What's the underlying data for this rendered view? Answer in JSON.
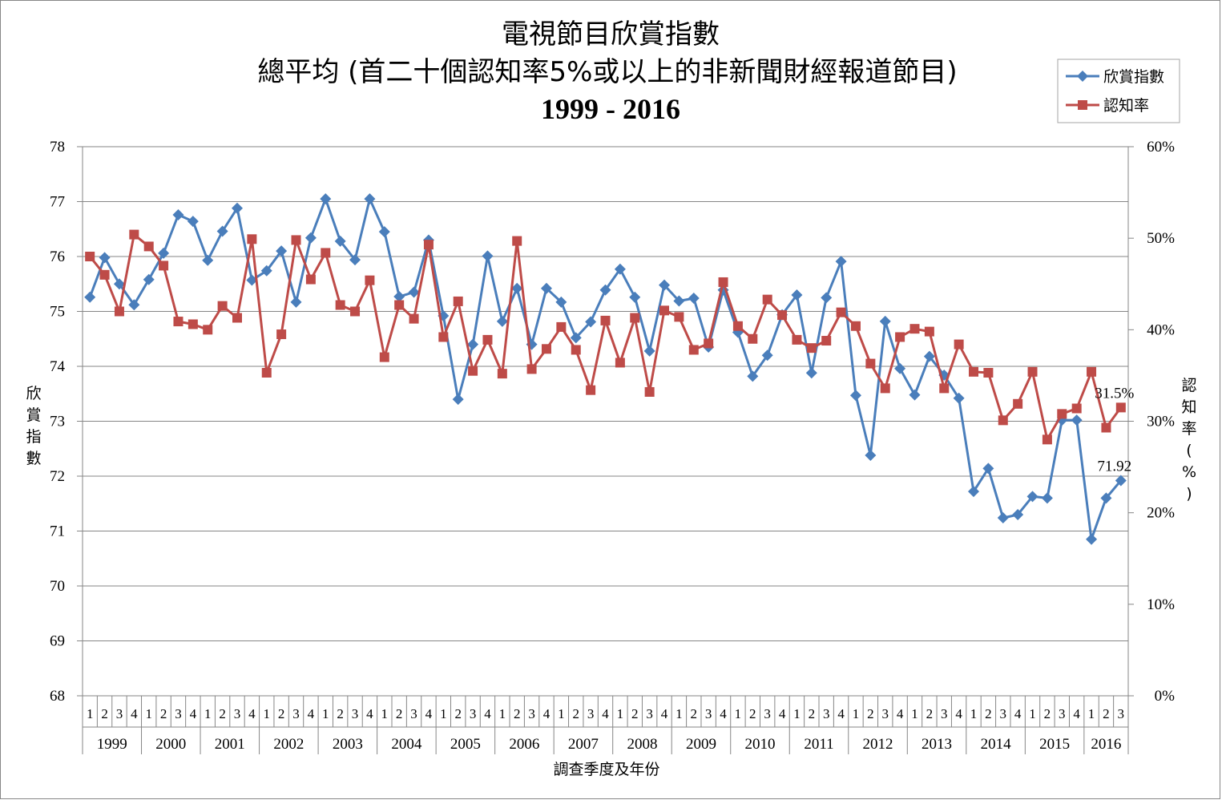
{
  "chart_data": {
    "type": "line",
    "title": [
      "電視節目欣賞指數",
      "總平均 (首二十個認知率5%或以上的非新聞財經報道節目)",
      "1999 - 2016"
    ],
    "xlabel": "調查季度及年份",
    "ylabel": "欣賞指數",
    "y2label": "認知率(%)",
    "ylim": [
      68,
      78
    ],
    "y_ticks": [
      "68",
      "69",
      "70",
      "71",
      "72",
      "73",
      "74",
      "75",
      "76",
      "77",
      "78"
    ],
    "y2lim": [
      0,
      60
    ],
    "y2_ticks": [
      "0%",
      "10%",
      "20%",
      "30%",
      "40%",
      "50%",
      "60%"
    ],
    "legend_position": "top-right",
    "years": [
      {
        "label": "1999",
        "quarters": [
          "1",
          "2",
          "3",
          "4"
        ]
      },
      {
        "label": "2000",
        "quarters": [
          "1",
          "2",
          "3",
          "4"
        ]
      },
      {
        "label": "2001",
        "quarters": [
          "1",
          "2",
          "3",
          "4"
        ]
      },
      {
        "label": "2002",
        "quarters": [
          "1",
          "2",
          "3",
          "4"
        ]
      },
      {
        "label": "2003",
        "quarters": [
          "1",
          "2",
          "3",
          "4"
        ]
      },
      {
        "label": "2004",
        "quarters": [
          "1",
          "2",
          "3",
          "4"
        ]
      },
      {
        "label": "2005",
        "quarters": [
          "1",
          "2",
          "3",
          "4"
        ]
      },
      {
        "label": "2006",
        "quarters": [
          "1",
          "2",
          "3",
          "4"
        ]
      },
      {
        "label": "2007",
        "quarters": [
          "1",
          "2",
          "3",
          "4"
        ]
      },
      {
        "label": "2008",
        "quarters": [
          "1",
          "2",
          "3",
          "4"
        ]
      },
      {
        "label": "2009",
        "quarters": [
          "1",
          "2",
          "3",
          "4"
        ]
      },
      {
        "label": "2010",
        "quarters": [
          "1",
          "2",
          "3",
          "4"
        ]
      },
      {
        "label": "2011",
        "quarters": [
          "1",
          "2",
          "3",
          "4"
        ]
      },
      {
        "label": "2012",
        "quarters": [
          "1",
          "2",
          "3",
          "4"
        ]
      },
      {
        "label": "2013",
        "quarters": [
          "1",
          "2",
          "3",
          "4"
        ]
      },
      {
        "label": "2014",
        "quarters": [
          "1",
          "2",
          "3",
          "4"
        ]
      },
      {
        "label": "2015",
        "quarters": [
          "1",
          "2",
          "3",
          "4"
        ]
      },
      {
        "label": "2016",
        "quarters": [
          "1",
          "2",
          "3"
        ]
      }
    ],
    "series": [
      {
        "name": "欣賞指數",
        "axis": "left",
        "color": "#4a7ebb",
        "marker": "diamond",
        "values": [
          75.26,
          75.98,
          75.5,
          75.12,
          75.58,
          76.06,
          76.76,
          76.64,
          75.93,
          76.46,
          76.88,
          75.57,
          75.74,
          76.1,
          75.17,
          76.34,
          77.05,
          76.28,
          75.94,
          77.05,
          76.45,
          75.27,
          75.35,
          76.3,
          74.92,
          73.4,
          74.4,
          76.01,
          74.82,
          75.42,
          74.4,
          75.42,
          75.17,
          74.52,
          74.81,
          75.39,
          75.77,
          75.26,
          74.28,
          75.48,
          75.19,
          75.24,
          74.35,
          75.39,
          74.62,
          73.82,
          74.2,
          74.94,
          75.3,
          73.88,
          75.25,
          75.91,
          73.47,
          72.38,
          74.82,
          73.96,
          73.48,
          74.18,
          73.84,
          73.42,
          71.72,
          72.14,
          71.24,
          71.3,
          71.63,
          71.6,
          73.02,
          73.02,
          70.85,
          71.6,
          71.92
        ],
        "end_label": "71.92"
      },
      {
        "name": "認知率",
        "axis": "right",
        "color": "#be4b48",
        "marker": "square",
        "values": [
          48.0,
          46.0,
          42.0,
          50.4,
          49.1,
          47.0,
          40.9,
          40.6,
          40.0,
          42.6,
          41.3,
          49.9,
          35.3,
          39.5,
          49.8,
          45.5,
          48.4,
          42.7,
          42.0,
          45.4,
          37.0,
          42.7,
          41.2,
          49.3,
          39.2,
          43.1,
          35.5,
          38.9,
          35.2,
          49.7,
          35.7,
          37.9,
          40.3,
          37.8,
          33.4,
          41.0,
          36.4,
          41.3,
          33.2,
          42.1,
          41.4,
          37.8,
          38.5,
          45.2,
          40.4,
          39.0,
          43.3,
          41.6,
          38.9,
          38.0,
          38.8,
          41.9,
          40.4,
          36.3,
          33.6,
          39.2,
          40.1,
          39.8,
          33.6,
          38.4,
          35.4,
          35.3,
          30.1,
          31.9,
          35.4,
          28.0,
          30.8,
          31.4,
          35.4,
          29.3,
          31.5
        ],
        "end_label": "31.5%"
      }
    ]
  }
}
